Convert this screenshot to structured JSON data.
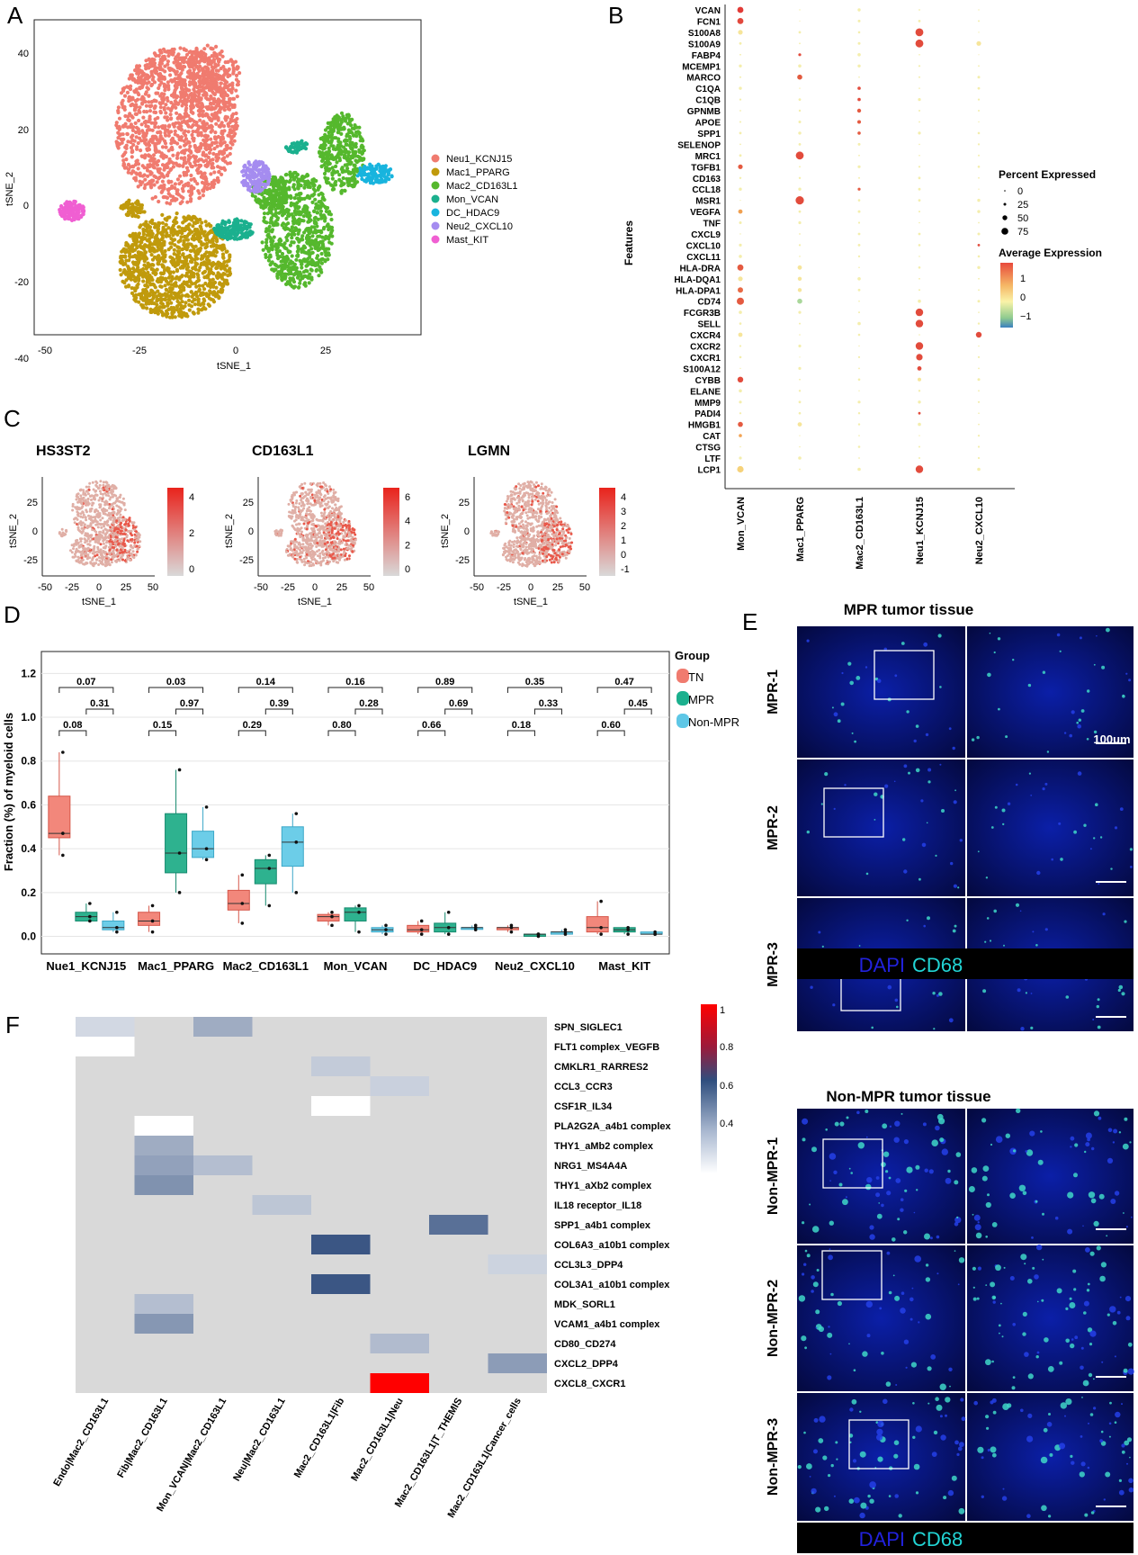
{
  "panels": {
    "A": {
      "letter": "A",
      "xlabel": "tSNE_1",
      "ylabel": "tSNE_2",
      "xticks": [
        "-50",
        "-25",
        "0",
        "25"
      ],
      "yticks": [
        "40",
        "20",
        "0",
        "-20",
        "-40"
      ],
      "legend": [
        {
          "label": "Neu1_KCNJ15",
          "color": "#F07B6F"
        },
        {
          "label": "Mac1_PPARG",
          "color": "#C09A0C"
        },
        {
          "label": "Mac2_CD163L1",
          "color": "#55B82D"
        },
        {
          "label": "Mon_VCAN",
          "color": "#1BB08E"
        },
        {
          "label": "DC_HDAC9",
          "color": "#18B4DE"
        },
        {
          "label": "Neu2_CXCL10",
          "color": "#A58CF0"
        },
        {
          "label": "Mast_KIT",
          "color": "#F05FD2"
        }
      ]
    },
    "B": {
      "letter": "B",
      "ylabel": "Features",
      "features": [
        "VCAN",
        "FCN1",
        "S100A8",
        "S100A9",
        "FABP4",
        "MCEMP1",
        "MARCO",
        "C1QA",
        "C1QB",
        "GPNMB",
        "APOE",
        "SPP1",
        "SELENOP",
        "MRC1",
        "TGFB1",
        "CD163",
        "CCL18",
        "MSR1",
        "VEGFA",
        "TNF",
        "CXCL9",
        "CXCL10",
        "CXCL11",
        "HLA-DRA",
        "HLA-DQA1",
        "HLA-DPA1",
        "CD74",
        "FCGR3B",
        "SELL",
        "CXCR4",
        "CXCR2",
        "CXCR1",
        "S100A12",
        "CYBB",
        "ELANE",
        "MMP9",
        "PADI4",
        "HMGB1",
        "CAT",
        "CTSG",
        "LTF",
        "LCP1"
      ],
      "groups": [
        "Mon_VCAN",
        "Mac1_PPARG",
        "Mac2_CD163L1",
        "Neu1_KCNJ15",
        "Neu2_CXCL10"
      ],
      "size_legend_title": "Percent Expressed",
      "size_legend": [
        "0",
        "25",
        "50",
        "75"
      ],
      "color_legend_title": "Average Expression",
      "color_legend": [
        "1",
        "0",
        "−1"
      ]
    },
    "C": {
      "letter": "C",
      "maps": [
        {
          "title": "HS3ST2",
          "scale": [
            "4",
            "2",
            "0"
          ],
          "xticks": [
            "-50",
            "-25",
            "0",
            "25",
            "50"
          ],
          "yticks": [
            "25",
            "0",
            "-25"
          ]
        },
        {
          "title": "CD163L1",
          "scale": [
            "6",
            "4",
            "2",
            "0"
          ],
          "xticks": [
            "-50",
            "-25",
            "0",
            "25",
            "50"
          ],
          "yticks": [
            "25",
            "0",
            "-25"
          ]
        },
        {
          "title": "LGMN",
          "scale": [
            "4",
            "3",
            "2",
            "1",
            "0",
            "-1"
          ],
          "xticks": [
            "-50",
            "-25",
            "0",
            "25",
            "50"
          ],
          "yticks": [
            "25",
            "0",
            "-25"
          ]
        }
      ],
      "xlabel": "tSNE_1",
      "ylabel": "tSNE_2"
    },
    "D": {
      "letter": "D",
      "ylabel": "Fraction (%) of myeloid cells",
      "legend_title": "Group",
      "legend": [
        {
          "label": "TN",
          "color": "#F07B6F"
        },
        {
          "label": "MPR",
          "color": "#1BB08E"
        },
        {
          "label": "Non-MPR",
          "color": "#5EC7E6"
        }
      ],
      "yticks": [
        "0.0",
        "0.2",
        "0.4",
        "0.6",
        "0.8",
        "1.0",
        "1.2"
      ]
    },
    "E": {
      "letter": "E",
      "title_mpr": "MPR tumor tissue",
      "title_non": "Non-MPR tumor tissue",
      "rows_mpr": [
        "MPR-1",
        "MPR-2",
        "MPR-3"
      ],
      "rows_non": [
        "Non-MPR-1",
        "Non-MPR-2",
        "Non-MPR-3"
      ],
      "scalebar": "100um",
      "stain_dapi": "DAPI",
      "stain_cd68": "CD68"
    },
    "F": {
      "letter": "F",
      "rows": [
        "SPN_SIGLEC1",
        "FLT1 complex_VEGFB",
        "CMKLR1_RARRES2",
        "CCL3_CCR3",
        "CSF1R_IL34",
        "PLA2G2A_a4b1 complex",
        "THY1_aMb2 complex",
        "NRG1_MS4A4A",
        "THY1_aXb2 complex",
        "IL18 receptor_IL18",
        "SPP1_a4b1 complex",
        "COL6A3_a10b1 complex",
        "CCL3L3_DPP4",
        "COL3A1_a10b1 complex",
        "MDK_SORL1",
        "VCAM1_a4b1 complex",
        "CD80_CD274",
        "CXCL2_DPP4",
        "CXCL8_CXCR1"
      ],
      "cols": [
        "Endo|Mac2_CD163L1",
        "Fib|Mac2_CD163L1",
        "Mon_VCAN|Mac2_CD163L1",
        "Neu|Mac2_CD163L1",
        "Mac2_CD163L1|Fib",
        "Mac2_CD163L1|Neu",
        "Mac2_CD163L1|T_THEMIS",
        "Mac2_CD163L1|Cancer_cells"
      ],
      "scale": [
        "1",
        "0.8",
        "0.6",
        "0.4"
      ]
    }
  },
  "chart_data": [
    {
      "type": "dotplot",
      "categories": [
        "Mon_VCAN",
        "Mac1_PPARG",
        "Mac2_CD163L1",
        "Neu1_KCNJ15",
        "Neu2_CXCL10"
      ],
      "note_scale": "Average Expression -1 to 1, Percent Expressed 0-75"
    },
    {
      "type": "box",
      "categories": [
        "Nue1_KCNJ15",
        "Mac1_PPARG",
        "Mac2_CD163L1",
        "Mon_VCAN",
        "DC_HDAC9",
        "Neu2_CXCL10",
        "Mast_KIT"
      ],
      "ylim": [
        0,
        1.25
      ],
      "series": [
        {
          "name": "TN",
          "boxes": [
            [
              0.37,
              0.45,
              0.47,
              0.64,
              0.84
            ],
            [
              0.02,
              0.05,
              0.07,
              0.11,
              0.14
            ],
            [
              0.06,
              0.12,
              0.15,
              0.21,
              0.28
            ],
            [
              0.05,
              0.07,
              0.09,
              0.1,
              0.11
            ],
            [
              0.01,
              0.02,
              0.03,
              0.05,
              0.07
            ],
            [
              0.02,
              0.03,
              0.04,
              0.04,
              0.05
            ],
            [
              0.01,
              0.02,
              0.04,
              0.09,
              0.16
            ]
          ]
        },
        {
          "name": "MPR",
          "boxes": [
            [
              0.07,
              0.07,
              0.09,
              0.11,
              0.15
            ],
            [
              0.2,
              0.29,
              0.38,
              0.56,
              0.76
            ],
            [
              0.14,
              0.24,
              0.31,
              0.35,
              0.37
            ],
            [
              0.02,
              0.07,
              0.11,
              0.13,
              0.14
            ],
            [
              0.01,
              0.02,
              0.04,
              0.06,
              0.11
            ],
            [
              0.0,
              0.0,
              0.01,
              0.01,
              0.01
            ],
            [
              0.01,
              0.02,
              0.03,
              0.04,
              0.04
            ]
          ]
        },
        {
          "name": "Non-MPR",
          "boxes": [
            [
              0.02,
              0.03,
              0.04,
              0.07,
              0.11
            ],
            [
              0.35,
              0.36,
              0.4,
              0.48,
              0.59
            ],
            [
              0.2,
              0.32,
              0.43,
              0.5,
              0.56
            ],
            [
              0.01,
              0.02,
              0.03,
              0.04,
              0.05
            ],
            [
              0.03,
              0.04,
              0.04,
              0.04,
              0.05
            ],
            [
              0.01,
              0.01,
              0.02,
              0.02,
              0.03
            ],
            [
              0.01,
              0.01,
              0.01,
              0.02,
              0.02
            ]
          ]
        }
      ],
      "pvalues_top": [
        "0.07",
        "0.03",
        "0.14",
        "0.16",
        "0.89",
        "0.35",
        "0.47"
      ],
      "pvalues_mid": [
        "0.31",
        "0.97",
        "0.39",
        "0.28",
        "0.69",
        "0.33",
        "0.45"
      ],
      "pvalues_low": [
        "0.08",
        "0.15",
        "0.29",
        "0.80",
        "0.66",
        "0.18",
        "0.60"
      ]
    },
    {
      "type": "heatmap",
      "cells": [
        {
          "r": 0,
          "c": 0,
          "v": 0.45
        },
        {
          "r": 0,
          "c": 2,
          "v": 0.62
        },
        {
          "r": 1,
          "c": 0,
          "v": 0.3
        },
        {
          "r": 2,
          "c": 4,
          "v": 0.5
        },
        {
          "r": 3,
          "c": 5,
          "v": 0.48
        },
        {
          "r": 4,
          "c": 4,
          "v": 0.3
        },
        {
          "r": 5,
          "c": 1,
          "v": 0.3
        },
        {
          "r": 6,
          "c": 1,
          "v": 0.62
        },
        {
          "r": 7,
          "c": 1,
          "v": 0.66
        },
        {
          "r": 7,
          "c": 2,
          "v": 0.55
        },
        {
          "r": 8,
          "c": 1,
          "v": 0.72
        },
        {
          "r": 9,
          "c": 3,
          "v": 0.52
        },
        {
          "r": 10,
          "c": 6,
          "v": 0.85
        },
        {
          "r": 11,
          "c": 4,
          "v": 0.95
        },
        {
          "r": 12,
          "c": 7,
          "v": 0.47
        },
        {
          "r": 13,
          "c": 4,
          "v": 0.95
        },
        {
          "r": 14,
          "c": 1,
          "v": 0.55
        },
        {
          "r": 15,
          "c": 1,
          "v": 0.7
        },
        {
          "r": 16,
          "c": 5,
          "v": 0.56
        },
        {
          "r": 17,
          "c": 7,
          "v": 0.68
        },
        {
          "r": 18,
          "c": 5,
          "v": 1.12
        }
      ]
    }
  ]
}
